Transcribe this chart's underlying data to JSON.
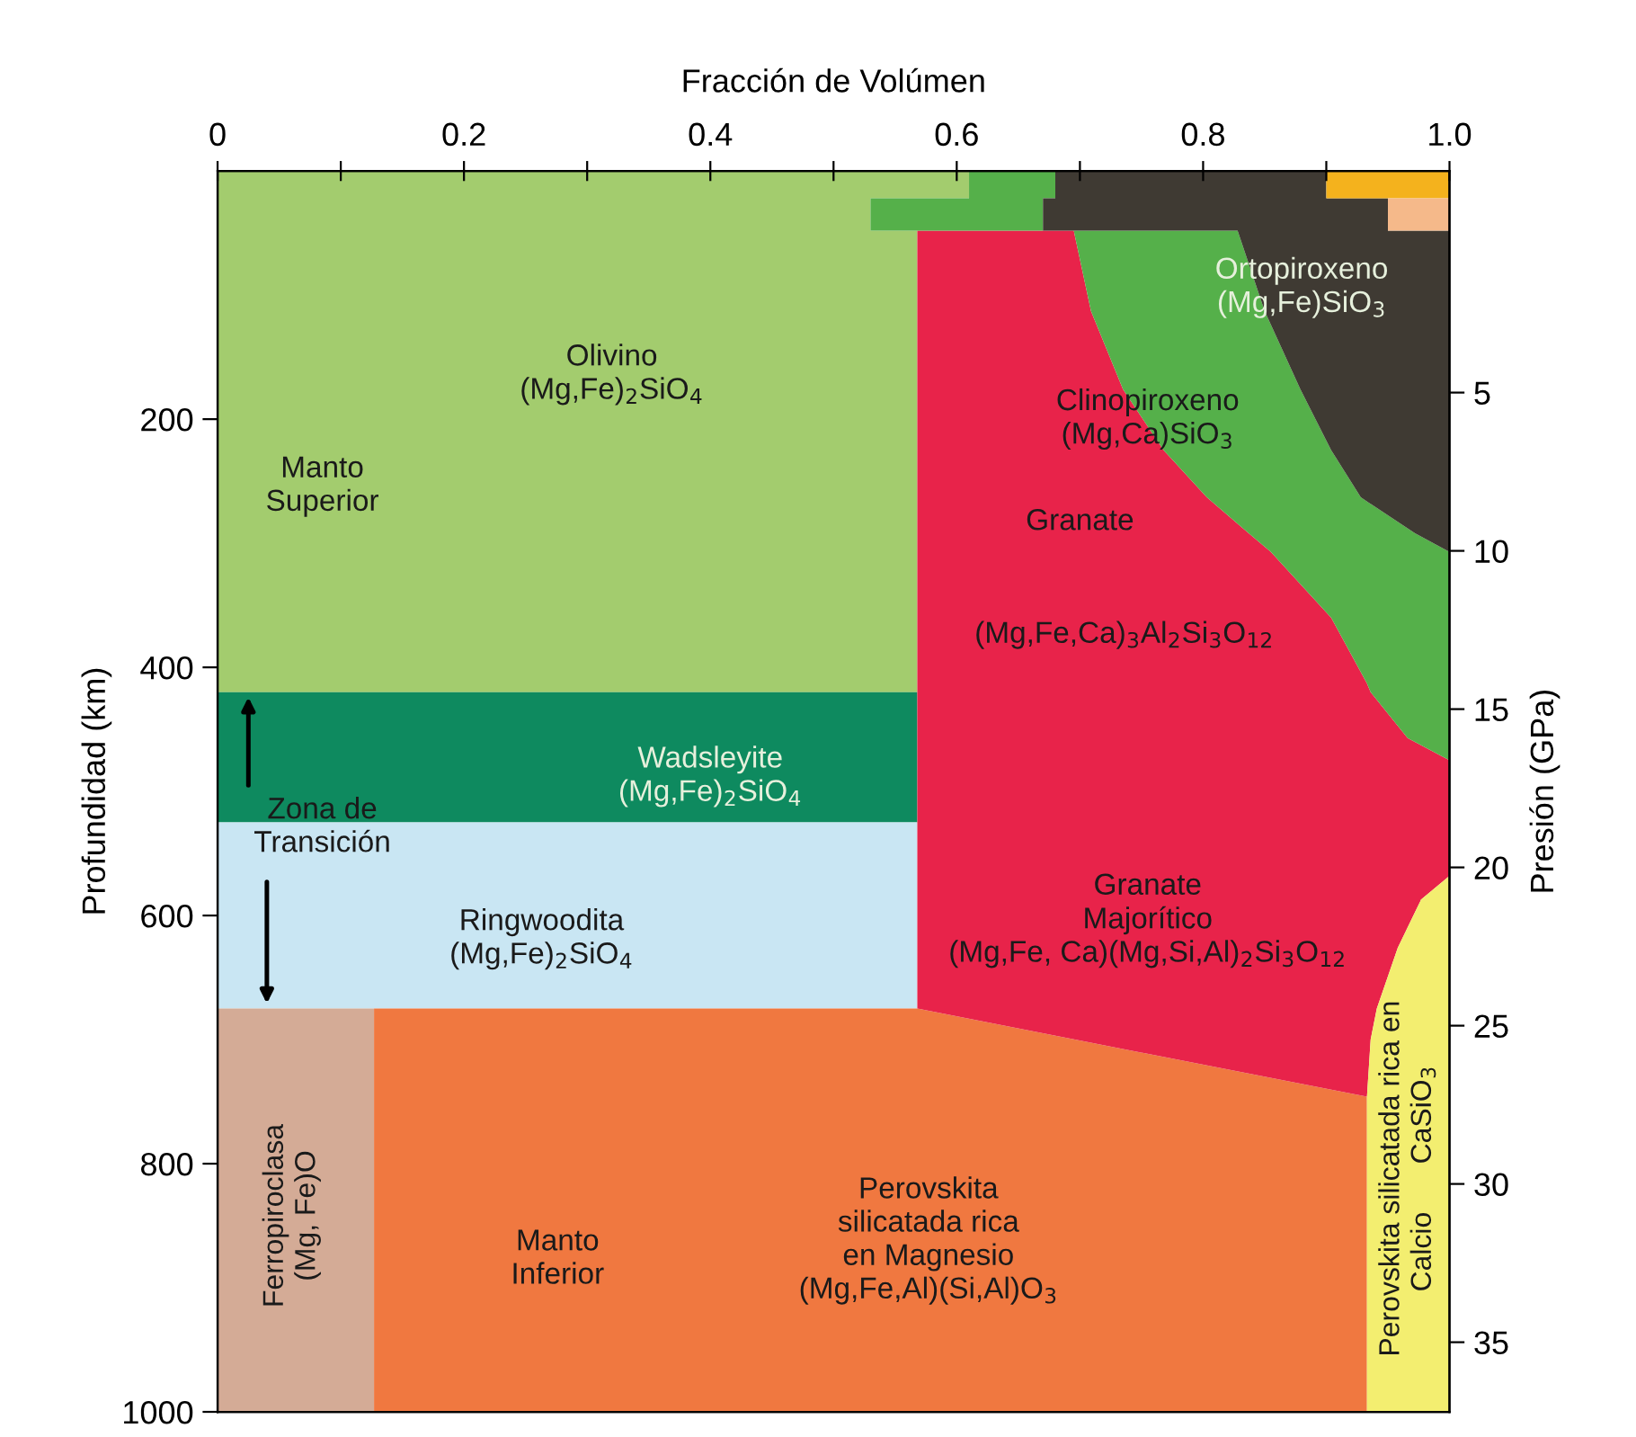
{
  "chart_data": {
    "type": "area",
    "orientation": "horizontal",
    "stacked": true,
    "xlabel": "Fracción de Volúmen",
    "ylabel": "Profundidad (km)",
    "y2label": "Presión (GPa)",
    "xlim": [
      0,
      1
    ],
    "xticks": [
      0,
      {
        "value": 0.1,
        "label": null
      },
      0.2,
      {
        "value": 0.3,
        "label": null
      },
      0.4,
      {
        "value": 0.5,
        "label": null
      },
      0.6,
      {
        "value": 0.7,
        "label": null
      },
      0.8,
      {
        "value": 0.9,
        "label": null
      },
      {
        "value": 1.0,
        "label": "1.0"
      }
    ],
    "ylim": [
      1000,
      0
    ],
    "yticks": [
      200,
      400,
      600,
      800,
      1000
    ],
    "y2lim": [
      37.2,
      -2
    ],
    "y2ticks": [
      5,
      10,
      15,
      20,
      25,
      30,
      35
    ],
    "grid": false,
    "legend": false,
    "x": [
      0,
      22,
      22,
      48,
      48,
      113,
      176,
      225,
      263,
      292,
      307,
      360,
      413,
      420,
      420,
      457,
      475,
      525,
      525,
      568,
      587,
      626,
      675,
      675,
      700,
      746,
      1000
    ],
    "series": [
      {
        "color": "#a3cc6e",
        "values": [
          0.61,
          0.61,
          0.53,
          0.53,
          0.568,
          0.568,
          0.568,
          0.568,
          0.568,
          0.568,
          0.568,
          0.568,
          0.568,
          0.568,
          null,
          null,
          null,
          null,
          null,
          null,
          null,
          null,
          null,
          null,
          null,
          null,
          null
        ]
      },
      {
        "color": "#0e8a5f",
        "values": [
          null,
          null,
          null,
          null,
          null,
          null,
          null,
          null,
          null,
          null,
          null,
          null,
          null,
          null,
          0.568,
          0.568,
          0.568,
          0.568,
          null,
          null,
          null,
          null,
          null,
          null,
          null,
          null,
          null
        ]
      },
      {
        "color": "#c9e6f3",
        "values": [
          null,
          null,
          null,
          null,
          null,
          null,
          null,
          null,
          null,
          null,
          null,
          null,
          null,
          null,
          null,
          null,
          null,
          null,
          0.568,
          0.568,
          0.568,
          0.568,
          0.568,
          null,
          null,
          null,
          null
        ]
      },
      {
        "color": "#d4ab96",
        "values": [
          null,
          null,
          null,
          null,
          null,
          null,
          null,
          null,
          null,
          null,
          null,
          null,
          null,
          null,
          null,
          null,
          null,
          null,
          null,
          null,
          null,
          null,
          null,
          0.127,
          0.127,
          0.127,
          0.127
        ]
      },
      {
        "color": "#f07840",
        "values": [
          null,
          null,
          null,
          null,
          null,
          null,
          null,
          null,
          null,
          null,
          null,
          null,
          null,
          null,
          null,
          null,
          null,
          null,
          null,
          null,
          null,
          null,
          null,
          0.441,
          0.569,
          0.806,
          0.806
        ]
      },
      {
        "color": "#e8234a",
        "values": [
          null,
          null,
          null,
          null,
          0.127,
          0.141,
          0.167,
          0.2,
          0.235,
          0.269,
          0.287,
          0.336,
          0.365,
          0.368,
          0.368,
          0.398,
          0.432,
          0.432,
          0.432,
          0.432,
          0.409,
          0.39,
          0.373,
          0.373,
          0.24,
          0,
          null
        ]
      },
      {
        "color": "#55b04a",
        "values": [
          0.07,
          0.07,
          0.14,
          0.14,
          0.133,
          0.141,
          0.144,
          0.136,
          0.125,
          0.135,
          0.145,
          0.096,
          0.067,
          0.064,
          0.064,
          0.034,
          0,
          null,
          null,
          null,
          null,
          null,
          null,
          null,
          null,
          null,
          null
        ]
      },
      {
        "color": "#3f3a33",
        "values": [
          0.22,
          0.22,
          0.28,
          0.28,
          0.172,
          0.15,
          0.121,
          0.096,
          0.072,
          0.028,
          0,
          null,
          null,
          null,
          null,
          null,
          null,
          null,
          null,
          null,
          null,
          null,
          null,
          null,
          null,
          null,
          null
        ]
      },
      {
        "color": "#f3ee70",
        "values": [
          null,
          null,
          null,
          null,
          null,
          null,
          null,
          null,
          null,
          null,
          null,
          null,
          null,
          null,
          null,
          null,
          null,
          null,
          null,
          0,
          0.023,
          0.042,
          0.059,
          0.059,
          0.064,
          0.067,
          0.067
        ]
      },
      {
        "color": "#f4b21d",
        "values": [
          0.1,
          0.1,
          null,
          null,
          null,
          null,
          null,
          null,
          null,
          null,
          null,
          null,
          null,
          null,
          null,
          null,
          null,
          null,
          null,
          null,
          null,
          null,
          null,
          null,
          null,
          null,
          null
        ]
      },
      {
        "color": "#f5b98a",
        "values": [
          null,
          null,
          0.05,
          0.05,
          null,
          null,
          null,
          null,
          null,
          null,
          null,
          null,
          null,
          null,
          null,
          null,
          null,
          null,
          null,
          null,
          null,
          null,
          null,
          null,
          null,
          null,
          null
        ]
      }
    ],
    "annotations": [
      "Olivino\n(Mg,Fe)$_{2}$SiO$_{4}$",
      "Manto\nSuperior",
      "Wadsleyite\n(Mg,Fe)$_{2}$SiO$_{4}$",
      "Zona de\nTransición",
      "Ringwoodita\n(Mg,Fe)$_{2}$SiO$_{4}$",
      "Ortopiroxeno\n(Mg,Fe)SiO$_{3}$",
      "Clinopiroxeno\n(Mg,Ca)SiO$_{3}$",
      "Granate",
      "(Mg,Fe,Ca)$_{3}$Al$_{2}$Si$_{3}$O$_{12}$",
      "Granate\nMajorítico\n(Mg,Fe, Ca)(Mg,Si,Al)$_{2}$Si$_{3}$O$_{12}$",
      "Perovskita\nsilicatada rica\nen Magnesio\n(Mg,Fe,Al)(Si,Al)O$_{3}$",
      "Manto\nInferior",
      "Ferropiroclasa\n(Mg, Fe)O",
      "Perovskita silicatada rica en\nCalcio      CaSiO$_{3}$"
    ]
  }
}
